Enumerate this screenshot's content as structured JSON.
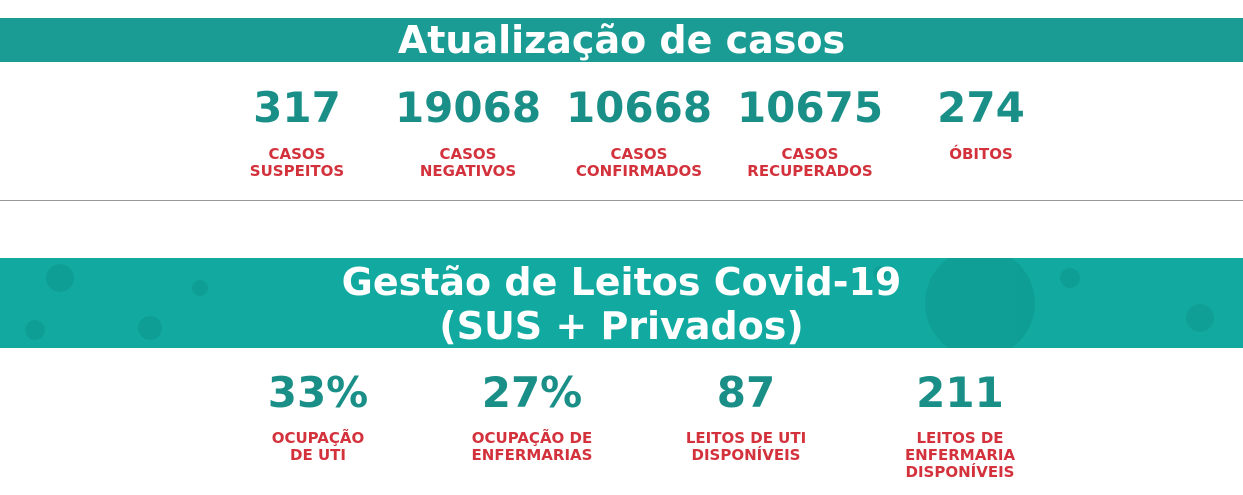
{
  "sections": [
    {
      "title": [
        "Atualização de casos"
      ],
      "stats": [
        {
          "value": "317",
          "label": [
            "CASOS",
            "SUSPEITOS"
          ]
        },
        {
          "value": "19068",
          "label": [
            "CASOS",
            "NEGATIVOS"
          ]
        },
        {
          "value": "10668",
          "label": [
            "CASOS",
            "CONFIRMADOS"
          ]
        },
        {
          "value": "10675",
          "label": [
            "CASOS",
            "RECUPERADOS"
          ]
        },
        {
          "value": "274",
          "label": [
            "ÓBITOS"
          ]
        }
      ]
    },
    {
      "title": [
        "Gestão de Leitos Covid-19",
        "(SUS + Privados)"
      ],
      "stats": [
        {
          "value": "33%",
          "label": [
            "OCUPAÇÃO",
            "DE UTI"
          ]
        },
        {
          "value": "27%",
          "label": [
            "OCUPAÇÃO DE",
            "ENFERMARIAS"
          ]
        },
        {
          "value": "87",
          "label": [
            "LEITOS DE UTI",
            "DISPONÍVEIS"
          ]
        },
        {
          "value": "211",
          "label": [
            "LEITOS DE",
            "ENFERMARIA",
            "DISPONÍVEIS"
          ]
        }
      ]
    }
  ]
}
